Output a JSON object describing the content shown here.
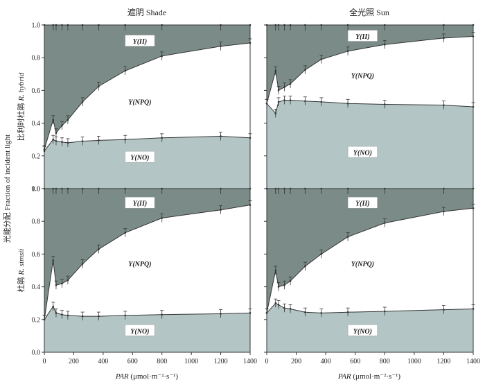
{
  "figure": {
    "col_titles": [
      "遮阴 Shade",
      "全光照 Sun"
    ],
    "ylabel": "光能分配 Fraction of incident light",
    "row_labels": [
      {
        "cn": "比利时杜鹃",
        "latin": "R. hybrid"
      },
      {
        "cn": "杜鹃",
        "latin": "R. simsii"
      }
    ],
    "xlabel": {
      "var": "PAR",
      "unit": "(μmol·m⁻²·s⁻¹)"
    }
  },
  "chart_data": [
    {
      "type": "area",
      "panel": "R. hybrid – Shade",
      "x": [
        0,
        60,
        80,
        120,
        160,
        260,
        370,
        550,
        800,
        1200,
        1400
      ],
      "series": [
        {
          "name": "Y(NO)",
          "values": [
            0.23,
            0.3,
            0.29,
            0.285,
            0.28,
            0.29,
            0.295,
            0.3,
            0.31,
            0.32,
            0.31
          ]
        },
        {
          "name": "Y(NPQ)",
          "values": [
            0.01,
            0.12,
            0.05,
            0.1,
            0.14,
            0.24,
            0.33,
            0.42,
            0.5,
            0.55,
            0.58
          ]
        },
        {
          "name": "Y(II)",
          "values": [
            0.76,
            0.58,
            0.66,
            0.615,
            0.58,
            0.47,
            0.375,
            0.28,
            0.19,
            0.13,
            0.11
          ]
        }
      ],
      "xlim": [
        0,
        1400
      ],
      "ylim": [
        0,
        1.0
      ],
      "xticks": [
        0,
        200,
        400,
        600,
        800,
        1000,
        1200,
        1400
      ],
      "yticks": [
        "0.0",
        "0.2",
        "0.4",
        "0.6",
        "0.8",
        "1.0"
      ],
      "region_labels": [
        {
          "text": "Y(II)",
          "x": 650,
          "y": 0.9
        },
        {
          "text": "Y(NPQ)",
          "x": 650,
          "y": 0.53
        },
        {
          "text": "Y(NO)",
          "x": 650,
          "y": 0.19
        }
      ]
    },
    {
      "type": "area",
      "panel": "R. hybrid – Sun",
      "x": [
        0,
        60,
        80,
        120,
        160,
        260,
        370,
        550,
        800,
        1200,
        1400
      ],
      "series": [
        {
          "name": "Y(NO)",
          "values": [
            0.52,
            0.46,
            0.53,
            0.54,
            0.54,
            0.535,
            0.53,
            0.52,
            0.515,
            0.51,
            0.5
          ]
        },
        {
          "name": "Y(NPQ)",
          "values": [
            0.0,
            0.26,
            0.07,
            0.08,
            0.1,
            0.19,
            0.26,
            0.32,
            0.365,
            0.41,
            0.43
          ]
        },
        {
          "name": "Y(II)",
          "values": [
            0.48,
            0.28,
            0.4,
            0.38,
            0.36,
            0.275,
            0.21,
            0.16,
            0.12,
            0.08,
            0.07
          ]
        }
      ],
      "xlim": [
        0,
        1400
      ],
      "ylim": [
        0,
        1.0
      ],
      "xticks": [
        0,
        200,
        400,
        600,
        800,
        1000,
        1200,
        1400
      ],
      "yticks": [
        "0.0",
        "0.2",
        "0.4",
        "0.6",
        "0.8",
        "1.0"
      ],
      "region_labels": [
        {
          "text": "Y(II)",
          "x": 650,
          "y": 0.93
        },
        {
          "text": "Y(NPQ)",
          "x": 650,
          "y": 0.69
        },
        {
          "text": "Y(NO)",
          "x": 650,
          "y": 0.22
        }
      ]
    },
    {
      "type": "area",
      "panel": "R. simsii – Shade",
      "x": [
        0,
        60,
        80,
        120,
        160,
        260,
        370,
        550,
        800,
        1200,
        1400
      ],
      "series": [
        {
          "name": "Y(NO)",
          "values": [
            0.2,
            0.28,
            0.24,
            0.23,
            0.225,
            0.22,
            0.22,
            0.225,
            0.23,
            0.235,
            0.24
          ]
        },
        {
          "name": "Y(NPQ)",
          "values": [
            0.0,
            0.28,
            0.17,
            0.19,
            0.215,
            0.32,
            0.41,
            0.505,
            0.59,
            0.635,
            0.66
          ]
        },
        {
          "name": "Y(II)",
          "values": [
            0.8,
            0.44,
            0.59,
            0.58,
            0.56,
            0.46,
            0.37,
            0.27,
            0.18,
            0.13,
            0.1
          ]
        }
      ],
      "xlim": [
        0,
        1400
      ],
      "ylim": [
        0,
        1.0
      ],
      "xticks": [
        0,
        200,
        400,
        600,
        800,
        1000,
        1200,
        1400
      ],
      "yticks": [
        "0.0",
        "0.2",
        "0.4",
        "0.6",
        "0.8",
        "1.0"
      ],
      "region_labels": [
        {
          "text": "Y(II)",
          "x": 650,
          "y": 0.91
        },
        {
          "text": "Y(NPQ)",
          "x": 650,
          "y": 0.54
        },
        {
          "text": "Y(NO)",
          "x": 650,
          "y": 0.13
        }
      ]
    },
    {
      "type": "area",
      "panel": "R. simsii – Sun",
      "x": [
        0,
        60,
        80,
        120,
        160,
        260,
        370,
        550,
        800,
        1200,
        1400
      ],
      "series": [
        {
          "name": "Y(NO)",
          "values": [
            0.24,
            0.3,
            0.29,
            0.27,
            0.265,
            0.245,
            0.24,
            0.245,
            0.25,
            0.26,
            0.265
          ]
        },
        {
          "name": "Y(NPQ)",
          "values": [
            0.0,
            0.2,
            0.11,
            0.14,
            0.17,
            0.28,
            0.36,
            0.46,
            0.54,
            0.6,
            0.615
          ]
        },
        {
          "name": "Y(II)",
          "values": [
            0.76,
            0.5,
            0.6,
            0.59,
            0.565,
            0.475,
            0.4,
            0.295,
            0.21,
            0.14,
            0.12
          ]
        }
      ],
      "xlim": [
        0,
        1400
      ],
      "ylim": [
        0,
        1.0
      ],
      "xticks": [
        0,
        200,
        400,
        600,
        800,
        1000,
        1200,
        1400
      ],
      "yticks": [
        "0.0",
        "0.2",
        "0.4",
        "0.6",
        "0.8",
        "1.0"
      ],
      "region_labels": [
        {
          "text": "Y(II)",
          "x": 650,
          "y": 0.91
        },
        {
          "text": "Y(NPQ)",
          "x": 650,
          "y": 0.54
        },
        {
          "text": "Y(NO)",
          "x": 650,
          "y": 0.13
        }
      ]
    }
  ],
  "colors": {
    "Y(II)": "#7b8c88",
    "Y(NPQ)": "#ffffff",
    "Y(NO)": "#b3c6c5",
    "line": "#333333"
  }
}
